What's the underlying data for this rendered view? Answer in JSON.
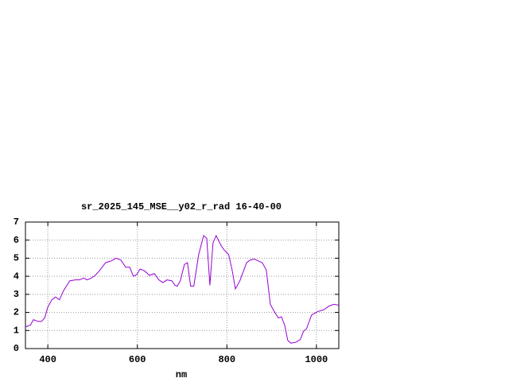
{
  "chart_data": {
    "type": "line",
    "title": "sr_2025_145_MSE__y02_r_rad 16-40-00",
    "xlabel": "nm",
    "x": [
      350,
      361,
      368,
      378,
      386,
      393,
      400,
      409,
      417,
      426,
      435,
      449,
      462,
      471,
      480,
      488,
      497,
      506,
      515,
      529,
      542,
      552,
      563,
      574,
      583,
      591,
      599,
      606,
      616,
      627,
      638,
      648,
      657,
      666,
      677,
      684,
      689,
      696,
      705,
      712,
      719,
      726,
      737,
      748,
      755,
      762,
      769,
      776,
      787,
      794,
      804,
      812,
      819,
      829,
      844,
      852,
      861,
      870,
      879,
      888,
      897,
      907,
      915,
      922,
      929,
      936,
      943,
      954,
      964,
      971,
      978,
      989,
      1003,
      1017,
      1028,
      1039,
      1050
    ],
    "values": [
      1.2,
      1.3,
      1.6,
      1.5,
      1.5,
      1.7,
      2.3,
      2.7,
      2.85,
      2.7,
      3.2,
      3.75,
      3.8,
      3.8,
      3.9,
      3.8,
      3.9,
      4.05,
      4.3,
      4.75,
      4.85,
      5.0,
      4.9,
      4.5,
      4.5,
      4.0,
      4.1,
      4.4,
      4.3,
      4.05,
      4.15,
      3.8,
      3.65,
      3.8,
      3.75,
      3.5,
      3.45,
      3.75,
      4.65,
      4.75,
      3.45,
      3.45,
      5.2,
      6.25,
      6.1,
      3.5,
      5.85,
      6.25,
      5.7,
      5.45,
      5.2,
      4.3,
      3.3,
      3.75,
      4.75,
      4.9,
      4.95,
      4.85,
      4.75,
      4.35,
      2.45,
      2.0,
      1.7,
      1.75,
      1.3,
      0.45,
      0.3,
      0.35,
      0.5,
      0.95,
      1.1,
      1.85,
      2.05,
      2.15,
      2.35,
      2.45,
      2.4
    ],
    "color": "#9400d3",
    "xlim": [
      350,
      1050
    ],
    "xticks": [
      400,
      600,
      800,
      1000
    ],
    "ylim": [
      0,
      7
    ],
    "yticks": [
      0,
      1,
      2,
      3,
      4,
      5,
      6,
      7
    ],
    "grid": true
  }
}
